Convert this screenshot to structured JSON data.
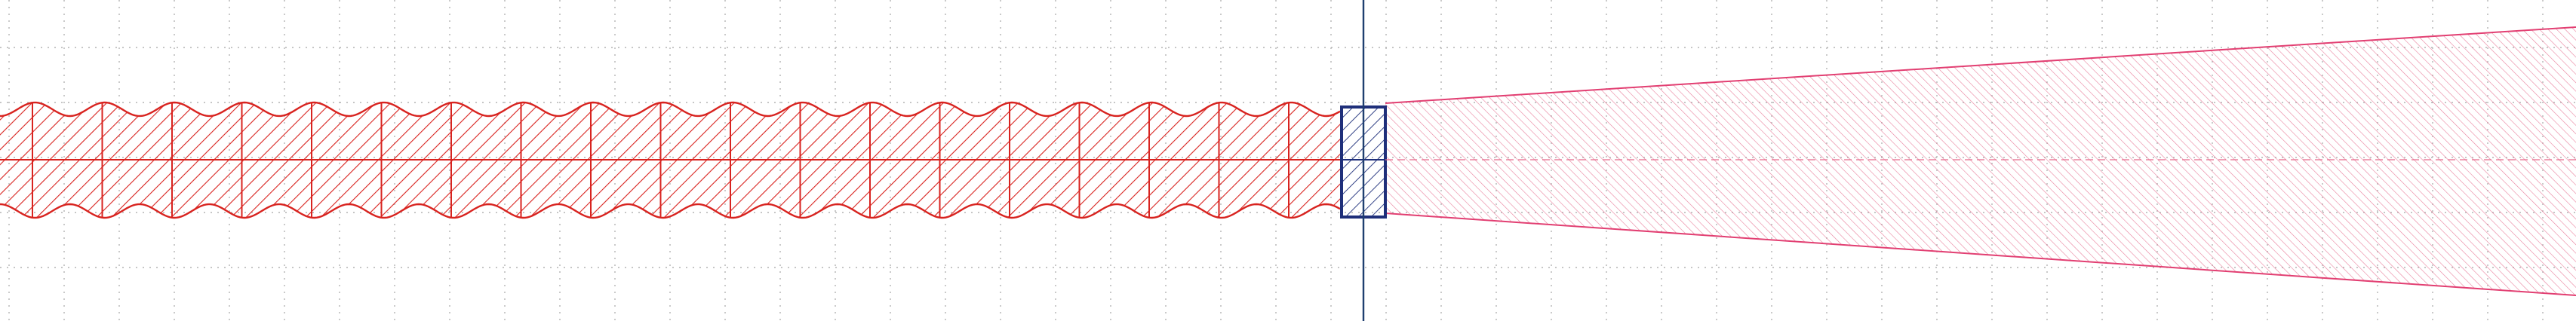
{
  "canvas": {
    "background": "#ffffff"
  },
  "colors": {
    "grid_dot": "#b3b3b3",
    "waves_outline": "#d8231f",
    "waves_hatch": "#d8231f",
    "wedge_outline": "#e23f72",
    "wedge_hatch": "#e56a8c",
    "rect_outline": "#1f2f7a",
    "vertical_axis": "#1f3f70"
  },
  "icons": {
    "wavy_band": "wavy-band-icon",
    "wedge": "wedge-icon",
    "focal_box": "focal-box-icon"
  }
}
